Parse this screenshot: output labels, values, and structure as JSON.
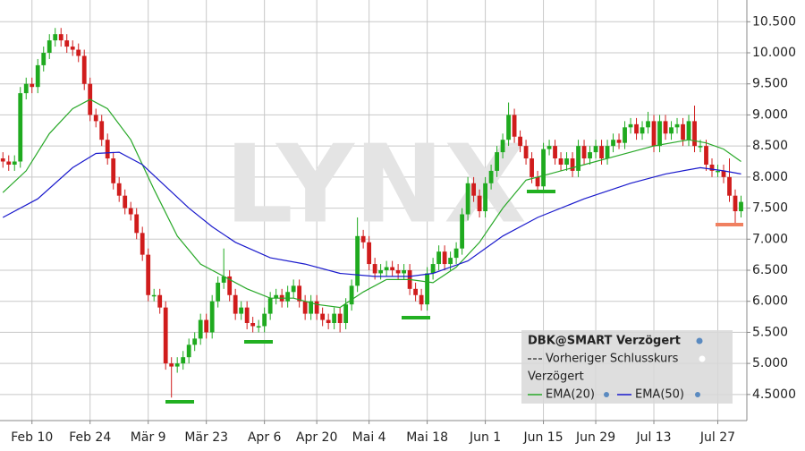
{
  "chart_data": {
    "type": "candlestick",
    "watermark": "LYNX",
    "categories": [
      null,
      null,
      null,
      null,
      null,
      "Feb 10",
      null,
      null,
      null,
      null,
      null,
      null,
      null,
      null,
      null,
      "Feb 24",
      null,
      null,
      null,
      null,
      null,
      null,
      null,
      null,
      null,
      "Mär 9",
      null,
      null,
      null,
      null,
      null,
      null,
      null,
      null,
      null,
      "Mär 23",
      null,
      null,
      null,
      null,
      null,
      null,
      null,
      null,
      null,
      "Apr 6",
      null,
      null,
      null,
      null,
      null,
      null,
      null,
      null,
      "Apr 20",
      null,
      null,
      null,
      null,
      null,
      null,
      null,
      null,
      "Mai 4",
      null,
      null,
      null,
      null,
      null,
      null,
      null,
      null,
      null,
      "Mai 18",
      null,
      null,
      null,
      null,
      null,
      null,
      null,
      null,
      null,
      "Jun 1",
      null,
      null,
      null,
      null,
      null,
      null,
      null,
      null,
      null,
      "Jun 15",
      null,
      null,
      null,
      null,
      null,
      null,
      null,
      null,
      "Jun 29",
      null,
      null,
      null,
      null,
      null,
      null,
      null,
      null,
      null,
      "Jul 13",
      null,
      null,
      null,
      null,
      null,
      null,
      null,
      null,
      null,
      null,
      "Jul 27",
      null,
      null,
      null,
      null
    ],
    "open": [
      8.3,
      8.25,
      8.2,
      8.25,
      9.35,
      9.5,
      9.45,
      9.8,
      10.0,
      10.2,
      10.3,
      10.2,
      10.1,
      10.05,
      9.95,
      9.5,
      9.0,
      8.9,
      8.6,
      8.3,
      7.9,
      7.7,
      7.5,
      7.4,
      7.1,
      6.75,
      6.1,
      6.1,
      5.9,
      5.0,
      4.95,
      5.0,
      5.1,
      5.3,
      5.4,
      5.7,
      5.5,
      6.0,
      6.3,
      6.4,
      6.1,
      5.8,
      5.9,
      5.65,
      5.6,
      5.6,
      5.8,
      6.05,
      6.1,
      6.0,
      6.15,
      6.25,
      6.0,
      5.8,
      6.0,
      5.8,
      5.7,
      5.65,
      5.8,
      5.65,
      5.95,
      6.25,
      7.05,
      6.95,
      6.6,
      6.45,
      6.5,
      6.55,
      6.5,
      6.45,
      6.5,
      6.2,
      6.1,
      5.95,
      6.45,
      6.6,
      6.8,
      6.6,
      6.7,
      6.85,
      7.4,
      7.9,
      7.7,
      7.45,
      7.9,
      8.1,
      8.4,
      8.6,
      9.0,
      8.65,
      8.5,
      8.3,
      8.0,
      7.85,
      8.45,
      8.5,
      8.3,
      8.2,
      8.3,
      8.1,
      8.5,
      8.3,
      8.4,
      8.5,
      8.3,
      8.5,
      8.6,
      8.55,
      8.8,
      8.85,
      8.7,
      8.8,
      8.9,
      8.5,
      8.9,
      8.7,
      8.8,
      8.85,
      8.6,
      8.9,
      8.5,
      8.5,
      8.2,
      8.1,
      8.1,
      8.0,
      7.7,
      7.45
    ],
    "high": [
      8.4,
      8.35,
      8.35,
      9.45,
      9.6,
      9.6,
      9.9,
      10.1,
      10.3,
      10.4,
      10.4,
      10.3,
      10.2,
      10.15,
      10.05,
      9.6,
      9.1,
      9.0,
      8.7,
      8.4,
      8.0,
      7.8,
      7.6,
      7.5,
      7.2,
      6.85,
      6.2,
      6.2,
      6.0,
      5.1,
      5.1,
      5.2,
      5.4,
      5.5,
      5.8,
      5.8,
      6.1,
      6.4,
      6.85,
      6.5,
      6.2,
      6.0,
      6.0,
      5.75,
      5.7,
      5.9,
      6.15,
      6.2,
      6.2,
      6.25,
      6.35,
      6.35,
      6.1,
      6.1,
      6.1,
      5.9,
      5.8,
      5.9,
      5.9,
      6.05,
      6.35,
      7.35,
      7.15,
      7.05,
      6.7,
      6.6,
      6.65,
      6.65,
      6.6,
      6.6,
      6.6,
      6.3,
      6.2,
      6.55,
      6.7,
      6.9,
      6.9,
      6.8,
      6.95,
      7.5,
      8.0,
      8.0,
      7.8,
      8.0,
      8.2,
      8.5,
      8.7,
      9.2,
      9.1,
      8.75,
      8.6,
      8.4,
      8.1,
      8.55,
      8.6,
      8.6,
      8.4,
      8.4,
      8.4,
      8.6,
      8.6,
      8.5,
      8.6,
      8.6,
      8.6,
      8.7,
      8.7,
      8.9,
      8.95,
      8.95,
      8.9,
      9.05,
      9.0,
      9.0,
      9.0,
      8.9,
      8.95,
      8.95,
      9.0,
      9.15,
      8.6,
      8.6,
      8.3,
      8.2,
      8.2,
      8.3,
      7.8,
      7.7
    ],
    "low": [
      8.15,
      8.1,
      8.1,
      8.15,
      9.25,
      9.35,
      9.35,
      9.7,
      9.9,
      10.1,
      10.1,
      10.0,
      9.95,
      9.85,
      9.4,
      8.9,
      8.8,
      8.5,
      8.2,
      7.8,
      7.6,
      7.4,
      7.3,
      7.0,
      6.65,
      6.0,
      6.0,
      5.8,
      4.9,
      4.45,
      4.85,
      4.9,
      5.0,
      5.2,
      5.3,
      5.4,
      5.4,
      5.9,
      6.2,
      6.0,
      5.7,
      5.7,
      5.55,
      5.5,
      5.5,
      5.5,
      5.7,
      5.95,
      5.9,
      5.9,
      6.05,
      5.9,
      5.7,
      5.7,
      5.7,
      5.6,
      5.55,
      5.55,
      5.5,
      5.55,
      5.85,
      6.15,
      6.85,
      6.5,
      6.35,
      6.35,
      6.4,
      6.4,
      6.35,
      6.35,
      6.1,
      6.0,
      5.85,
      5.85,
      6.35,
      6.5,
      6.5,
      6.5,
      6.6,
      6.75,
      7.3,
      7.6,
      7.35,
      7.35,
      7.8,
      8.0,
      8.3,
      8.5,
      8.55,
      8.4,
      8.2,
      7.9,
      7.75,
      7.75,
      8.35,
      8.2,
      8.1,
      8.1,
      8.0,
      8.0,
      8.2,
      8.2,
      8.3,
      8.2,
      8.2,
      8.4,
      8.45,
      8.45,
      8.7,
      8.6,
      8.6,
      8.7,
      8.4,
      8.4,
      8.6,
      8.6,
      8.7,
      8.5,
      8.5,
      8.4,
      8.4,
      8.1,
      8.0,
      8.0,
      7.9,
      7.6,
      7.25,
      7.35
    ],
    "close": [
      8.25,
      8.2,
      8.25,
      9.35,
      9.5,
      9.45,
      9.8,
      10.0,
      10.2,
      10.3,
      10.2,
      10.1,
      10.05,
      9.95,
      9.5,
      9.0,
      8.9,
      8.6,
      8.3,
      7.9,
      7.7,
      7.5,
      7.4,
      7.1,
      6.75,
      6.1,
      6.1,
      5.9,
      5.0,
      4.95,
      5.0,
      5.1,
      5.3,
      5.4,
      5.7,
      5.5,
      6.0,
      6.3,
      6.4,
      6.1,
      5.8,
      5.9,
      5.65,
      5.6,
      5.6,
      5.8,
      6.05,
      6.1,
      6.0,
      6.15,
      6.25,
      6.0,
      5.8,
      6.0,
      5.8,
      5.7,
      5.65,
      5.8,
      5.65,
      5.95,
      6.25,
      7.05,
      6.95,
      6.6,
      6.45,
      6.5,
      6.55,
      6.5,
      6.45,
      6.5,
      6.2,
      6.1,
      5.95,
      6.45,
      6.6,
      6.8,
      6.6,
      6.7,
      6.85,
      7.4,
      7.9,
      7.7,
      7.45,
      7.9,
      8.1,
      8.4,
      8.6,
      9.0,
      8.65,
      8.5,
      8.3,
      8.0,
      7.85,
      8.45,
      8.5,
      8.3,
      8.2,
      8.3,
      8.1,
      8.5,
      8.3,
      8.4,
      8.5,
      8.3,
      8.5,
      8.6,
      8.55,
      8.8,
      8.85,
      8.7,
      8.8,
      8.9,
      8.5,
      8.9,
      8.7,
      8.8,
      8.85,
      8.6,
      8.9,
      8.5,
      8.5,
      8.2,
      8.1,
      8.1,
      8.0,
      7.7,
      7.45,
      7.6
    ],
    "up_color": "#1faa1f",
    "down_color": "#d01c1c",
    "series": [
      {
        "name": "EMA(20)",
        "color": "#28a828",
        "x": [
          0,
          4,
          8,
          12,
          15,
          18,
          22,
          26,
          30,
          34,
          38,
          42,
          46,
          50,
          54,
          58,
          62,
          66,
          70,
          74,
          78,
          82,
          86,
          90,
          94,
          100,
          106,
          112,
          118,
          121,
          124,
          127
        ],
        "values": [
          7.75,
          8.1,
          8.7,
          9.1,
          9.25,
          9.1,
          8.6,
          7.8,
          7.05,
          6.6,
          6.4,
          6.2,
          6.05,
          6.05,
          5.95,
          5.9,
          6.15,
          6.35,
          6.35,
          6.3,
          6.55,
          6.95,
          7.5,
          7.95,
          8.05,
          8.2,
          8.35,
          8.5,
          8.6,
          8.55,
          8.45,
          8.25
        ]
      },
      {
        "name": "EMA(50)",
        "color": "#1a1acc",
        "x": [
          0,
          6,
          12,
          16,
          20,
          24,
          28,
          32,
          36,
          40,
          46,
          52,
          58,
          64,
          70,
          74,
          80,
          86,
          92,
          100,
          108,
          114,
          120,
          124,
          127
        ],
        "values": [
          7.35,
          7.65,
          8.15,
          8.38,
          8.4,
          8.2,
          7.85,
          7.5,
          7.2,
          6.95,
          6.7,
          6.6,
          6.45,
          6.4,
          6.4,
          6.45,
          6.65,
          7.05,
          7.35,
          7.65,
          7.9,
          8.05,
          8.15,
          8.1,
          8.05
        ]
      }
    ],
    "xlim": [
      -0.5,
      128
    ],
    "ylim": [
      4.08,
      10.85
    ],
    "yticks": [
      {
        "value": 10.5,
        "label": "10.500"
      },
      {
        "value": 10,
        "label": "10.000"
      },
      {
        "value": 9.5,
        "label": "9.500"
      },
      {
        "value": 9,
        "label": "9.000"
      },
      {
        "value": 8.5,
        "label": "8.500"
      },
      {
        "value": 8,
        "label": "8.000"
      },
      {
        "value": 7.5,
        "label": "7.500"
      },
      {
        "value": 7,
        "label": "7.000"
      },
      {
        "value": 6.5,
        "label": "6.500"
      },
      {
        "value": 6,
        "label": "6.000"
      },
      {
        "value": 5.5,
        "label": "5.500"
      },
      {
        "value": 5,
        "label": "5.000"
      },
      {
        "value": 4.5,
        "label": "4.5000"
      }
    ],
    "grid": true,
    "legend": {
      "title": "DBK@SMART Verzögert",
      "line": "Vorheriger Schlusskurs",
      "subtitle": "Verzögert"
    }
  }
}
